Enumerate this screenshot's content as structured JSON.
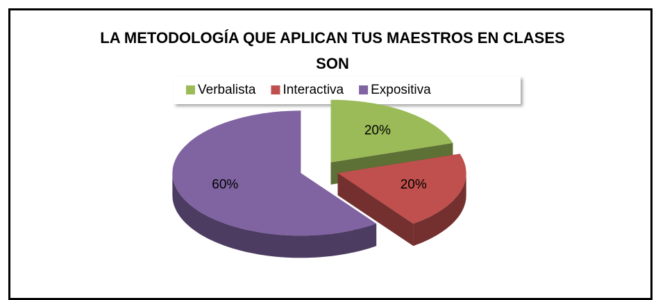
{
  "chart_data": {
    "type": "pie",
    "title": "LA METODOLOGÍA QUE APLICAN TUS MAESTROS EN CLASES SON",
    "categories": [
      "Verbalista",
      "Interactiva",
      "Expositiva"
    ],
    "values": [
      20,
      20,
      60
    ],
    "value_labels": [
      "20%",
      "20%",
      "60%"
    ],
    "colors": [
      "#9bbb59",
      "#c0504d",
      "#8064a2"
    ],
    "legend": "top"
  }
}
